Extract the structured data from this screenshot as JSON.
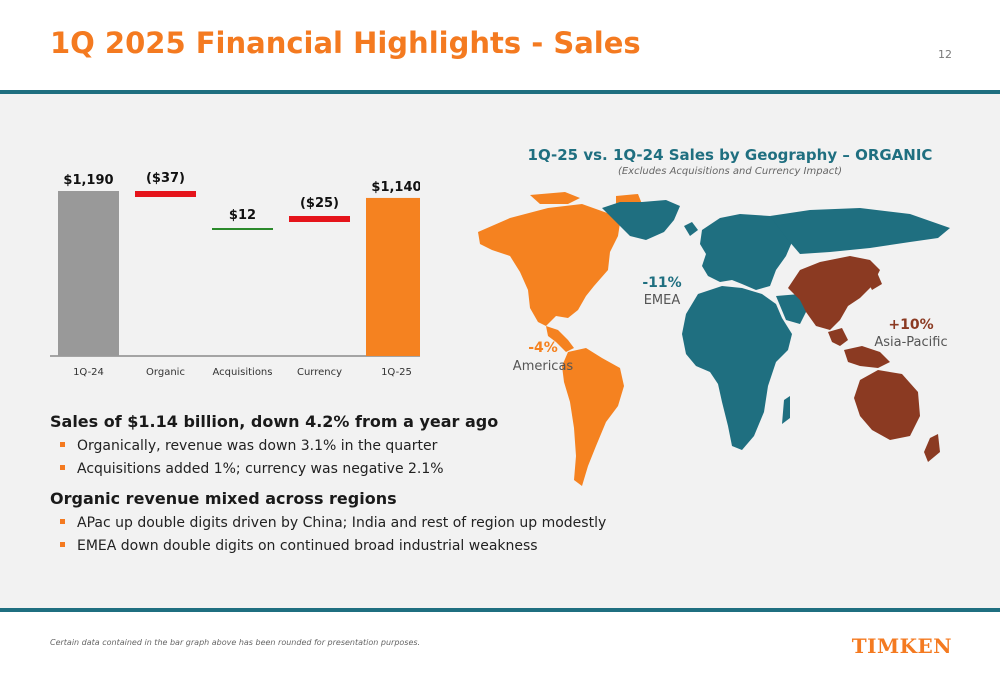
{
  "header": {
    "title": "1Q 2025 Financial Highlights - Sales",
    "page_number": "12"
  },
  "chart_data": {
    "type": "bar",
    "subtype": "waterfall",
    "categories": [
      "1Q-24",
      "Organic",
      "Acquisitions",
      "Currency",
      "1Q-25"
    ],
    "values": [
      1190,
      -37,
      12,
      -25,
      1140
    ],
    "data_labels": [
      "$1,190",
      "($37)",
      "$12",
      "($25)",
      "$1,140"
    ],
    "bar_kinds": [
      "total",
      "change",
      "change",
      "change",
      "total"
    ],
    "colors": {
      "start_total": "#999999",
      "end_total": "#f58220",
      "decrease": "#e5141b",
      "increase": "#2b8a2b"
    },
    "title": "",
    "xlabel": "",
    "ylabel": ""
  },
  "map": {
    "title": "1Q-25 vs. 1Q-24 Sales by Geography – ORGANIC",
    "subtitle": "(Excludes Acquisitions and Currency Impact)",
    "regions": [
      {
        "pct": "-4%",
        "name": "Americas",
        "color": "#f58220"
      },
      {
        "pct": "-11%",
        "name": "EMEA",
        "color": "#1f6f80"
      },
      {
        "pct": "+10%",
        "name": "Asia-Pacific",
        "color": "#8b3a22"
      }
    ]
  },
  "text": {
    "section1": "Sales of $1.14 billion, down 4.2% from a year ago",
    "section1_bullets": [
      "Organically, revenue was down 3.1% in the quarter",
      "Acquisitions added 1%; currency was negative 2.1%"
    ],
    "section2": "Organic revenue mixed across regions",
    "section2_bullets": [
      "APac up double digits driven by China; India and rest of region up modestly",
      "EMEA down double digits on continued broad industrial weakness"
    ]
  },
  "footer": {
    "footnote": "Certain data contained in the bar graph above has been rounded for presentation purposes.",
    "logo": "TIMKEN"
  }
}
